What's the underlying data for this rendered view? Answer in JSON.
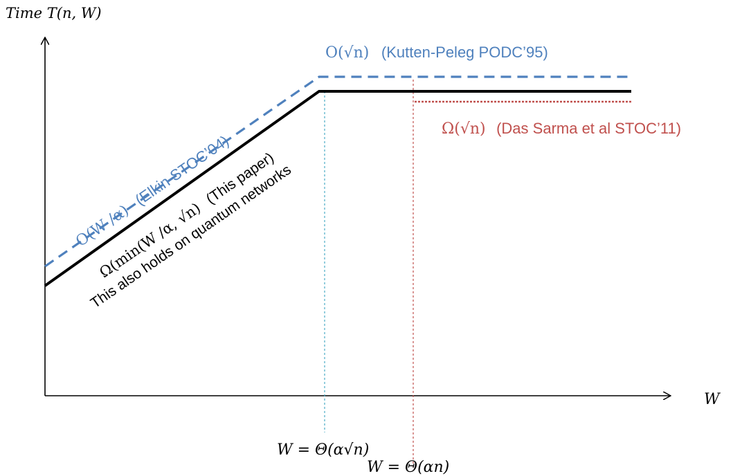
{
  "axes": {
    "y_label": "Time T(n, W)",
    "x_label": "W"
  },
  "annotations": {
    "upper_flat": {
      "math": "O(√n)",
      "text": "(Kutten-Peleg PODC’95)"
    },
    "upper_slope": {
      "math": "O(W /α)",
      "text": "(Elkin STOC’04)"
    },
    "lower_flat": {
      "math": "Ω(√n)",
      "text": "(Das Sarma et al STOC’11)"
    },
    "lower_slope_line1": {
      "math": "Ω(min(W /α, √n)",
      "text": "(This paper)"
    },
    "lower_slope_line2": "This also holds on quantum networks",
    "x_marker_1": "W = Θ(α√n)",
    "x_marker_2": "W = Θ(αn)"
  },
  "colors": {
    "axis": "#000000",
    "upper_bound": "#4f81bd",
    "lower_bound": "#000000",
    "das_sarma": "#c0504d",
    "marker_1": "#4bacc6",
    "marker_2": "#c0504d"
  }
}
